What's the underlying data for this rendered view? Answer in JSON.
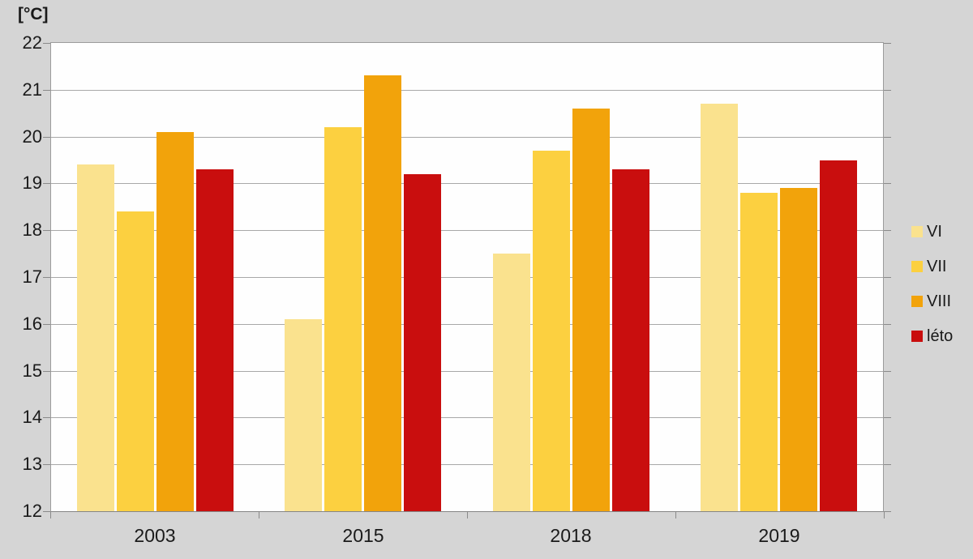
{
  "chart_data": {
    "type": "bar",
    "title": "",
    "unit_label": "[°C]",
    "categories": [
      "2003",
      "2015",
      "2018",
      "2019"
    ],
    "series": [
      {
        "name": "VI",
        "color": "#FAE28E",
        "values": [
          19.4,
          16.1,
          17.5,
          20.7
        ]
      },
      {
        "name": "VII",
        "color": "#FCD040",
        "values": [
          18.4,
          20.2,
          19.7,
          18.8
        ]
      },
      {
        "name": "VIII",
        "color": "#F2A30B",
        "values": [
          20.1,
          21.3,
          20.6,
          18.9
        ]
      },
      {
        "name": "léto",
        "color": "#C90E0E",
        "values": [
          19.3,
          19.2,
          19.3,
          19.5
        ]
      }
    ],
    "ylim": [
      12,
      22
    ],
    "yticks": [
      12,
      13,
      14,
      15,
      16,
      17,
      18,
      19,
      20,
      21,
      22
    ],
    "grid": true,
    "legend_position": "right"
  },
  "colors": {
    "background": "#D5D5D5",
    "plot_background": "#FEFEFE",
    "gridline": "#A8A8A8",
    "axis": "#8A8A8A",
    "text": "#1A1A1A"
  }
}
